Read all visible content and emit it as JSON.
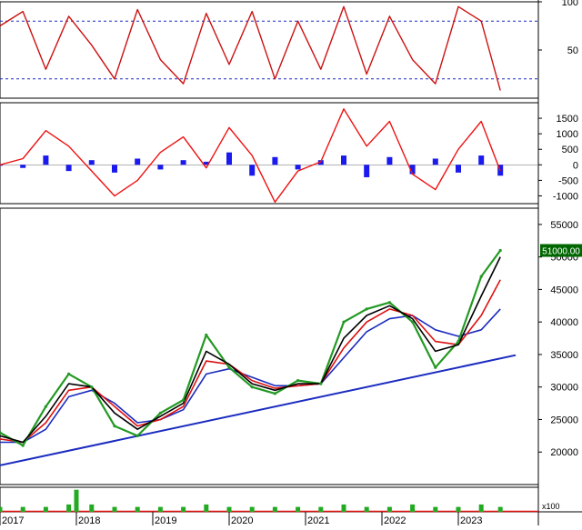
{
  "chart_data": [
    {
      "type": "line",
      "indicator": "stochastic",
      "ylim": [
        0,
        100
      ],
      "yticks": [
        "100",
        "50"
      ],
      "reference_levels": [
        80,
        20
      ],
      "colors": {
        "line": "#cc1111",
        "reference": "#1a2bbf"
      },
      "x_years": [
        2017.0,
        2017.3,
        2017.6,
        2017.9,
        2018.2,
        2018.5,
        2018.8,
        2019.1,
        2019.4,
        2019.7,
        2020.0,
        2020.3,
        2020.6,
        2020.9,
        2021.2,
        2021.5,
        2021.8,
        2022.1,
        2022.4,
        2022.7,
        2023.0,
        2023.3,
        2023.55
      ],
      "values": [
        75,
        90,
        30,
        85,
        55,
        20,
        92,
        40,
        15,
        88,
        35,
        90,
        20,
        80,
        30,
        95,
        25,
        85,
        40,
        15,
        95,
        80,
        8
      ]
    },
    {
      "type": "line",
      "indicator": "macd",
      "ylim": [
        -1250,
        2000
      ],
      "yticks": [
        "1500",
        "1000",
        "500",
        "0",
        "-500",
        "-1000"
      ],
      "colors": {
        "macd": "#ee1111",
        "histogram": "#1a1aee"
      },
      "x_years": [
        2017.0,
        2017.3,
        2017.6,
        2017.9,
        2018.2,
        2018.5,
        2018.8,
        2019.1,
        2019.4,
        2019.7,
        2020.0,
        2020.3,
        2020.6,
        2020.9,
        2021.2,
        2021.5,
        2021.8,
        2022.1,
        2022.4,
        2022.7,
        2023.0,
        2023.3,
        2023.55
      ],
      "macd": [
        0,
        200,
        1100,
        600,
        -200,
        -1000,
        -500,
        400,
        900,
        -100,
        1200,
        300,
        -1200,
        -200,
        100,
        1800,
        600,
        1400,
        -300,
        -800,
        500,
        1400,
        -200
      ],
      "histogram": [
        0,
        -100,
        300,
        -200,
        150,
        -250,
        200,
        -150,
        150,
        100,
        400,
        -350,
        250,
        -150,
        150,
        300,
        -400,
        250,
        -300,
        200,
        -250,
        300,
        -350
      ]
    },
    {
      "type": "line",
      "indicator": "price",
      "ylim": [
        15000,
        57500
      ],
      "yticks": [
        "55000",
        "50000",
        "45000",
        "40000",
        "35000",
        "30000",
        "25000",
        "20000"
      ],
      "last_price_label": "51000.00",
      "colors": {
        "price": "#229922",
        "ma_fast": "#000000",
        "ma_mid": "#dd1111",
        "ma_slow": "#1a2bbf",
        "trendline": "#1a2bbf",
        "last_label_bg": "#006600",
        "last_label_text": "#ffffff"
      },
      "x_years": [
        2017.0,
        2017.3,
        2017.6,
        2017.9,
        2018.2,
        2018.5,
        2018.8,
        2019.1,
        2019.4,
        2019.7,
        2020.0,
        2020.3,
        2020.6,
        2020.9,
        2021.2,
        2021.5,
        2021.8,
        2022.1,
        2022.4,
        2022.7,
        2023.0,
        2023.3,
        2023.55
      ],
      "price": [
        23000,
        21000,
        27000,
        32000,
        30000,
        24000,
        22500,
        26000,
        28000,
        38000,
        33000,
        30000,
        29000,
        31000,
        30500,
        40000,
        42000,
        43000,
        40000,
        33000,
        37000,
        47000,
        51000
      ],
      "ma_fast": [
        22500,
        21500,
        25500,
        30500,
        30000,
        26000,
        23500,
        25500,
        27500,
        35500,
        33500,
        30500,
        29500,
        30500,
        30500,
        37500,
        41000,
        42500,
        40500,
        35500,
        36500,
        44000,
        50000
      ],
      "ma_mid": [
        22000,
        21500,
        24500,
        29500,
        30000,
        27000,
        24000,
        25000,
        27000,
        34000,
        33500,
        31000,
        29800,
        30200,
        30500,
        36000,
        40000,
        42000,
        41000,
        37000,
        36500,
        41000,
        46500
      ],
      "ma_slow": [
        21500,
        21500,
        23500,
        28500,
        29500,
        27500,
        24500,
        25000,
        26500,
        32000,
        32800,
        31500,
        30200,
        30200,
        30500,
        34500,
        38500,
        40500,
        41000,
        38800,
        37800,
        38800,
        42000
      ],
      "trendline": {
        "x": [
          2016.9,
          2023.75
        ],
        "y": [
          17700,
          34900
        ]
      }
    },
    {
      "type": "bar",
      "indicator": "volume",
      "multiplier_label": "x100",
      "x_years": [
        2017.0,
        2017.3,
        2017.6,
        2017.9,
        2018.0,
        2018.2,
        2018.5,
        2018.8,
        2019.1,
        2019.4,
        2019.7,
        2020.0,
        2020.3,
        2020.6,
        2020.9,
        2021.2,
        2021.5,
        2021.8,
        2022.1,
        2022.4,
        2022.7,
        2023.0,
        2023.3,
        2023.55
      ],
      "values": [
        2,
        2,
        2,
        3,
        9,
        3,
        2,
        2,
        2,
        2,
        3,
        2,
        2,
        2,
        2,
        2,
        3,
        2,
        2,
        3,
        2,
        2,
        3,
        2
      ],
      "ylim": [
        0,
        10
      ],
      "colors": {
        "bar": "#22aa22",
        "baseline": "#dd1111"
      }
    }
  ],
  "x_axis": {
    "labels": [
      {
        "text": "2017",
        "year": 2017.0
      },
      {
        "text": "2018",
        "year": 2018.0
      },
      {
        "text": "2019",
        "year": 2019.0
      },
      {
        "text": "2020",
        "year": 2020.0
      },
      {
        "text": "2021",
        "year": 2021.0
      },
      {
        "text": "2022",
        "year": 2022.0
      },
      {
        "text": "2023",
        "year": 2023.0
      }
    ]
  }
}
